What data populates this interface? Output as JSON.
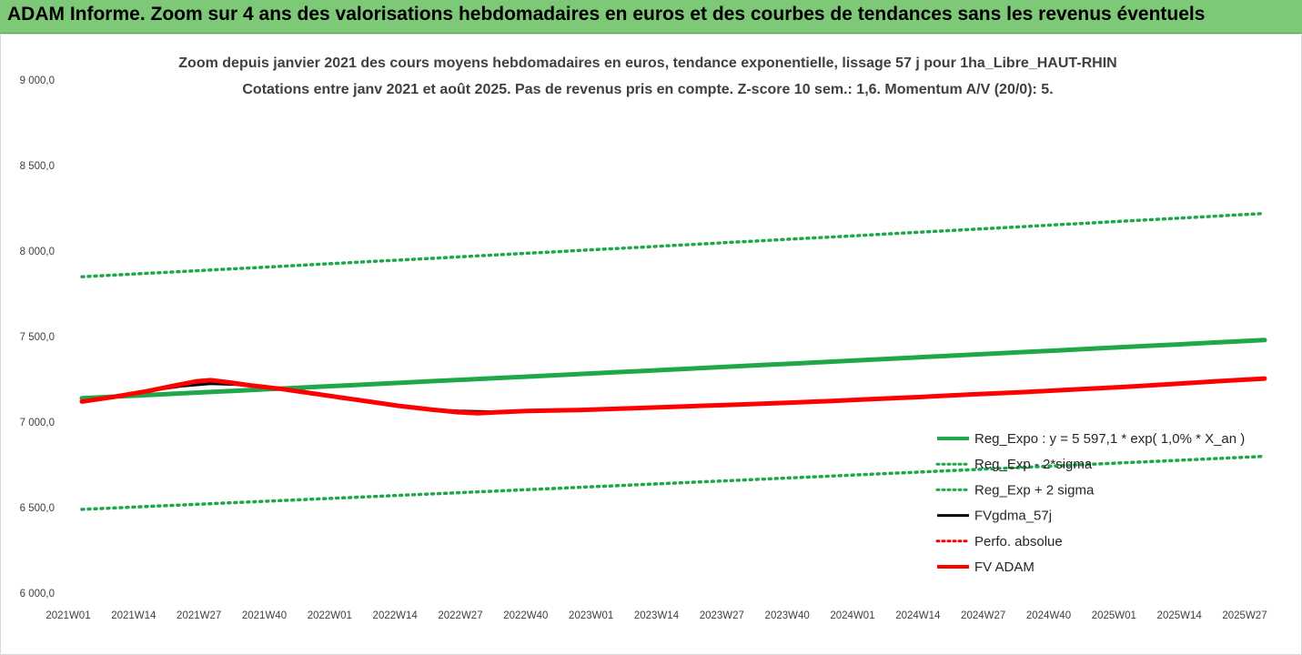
{
  "banner": {
    "title": "ADAM Informe. Zoom sur 4 ans des valorisations hebdomadaires en euros et des courbes de tendances sans les revenus éventuels",
    "background": "#7dc977"
  },
  "chart_data": {
    "type": "line",
    "title": "Zoom depuis janvier 2021 des cours moyens hebdomadaires en euros, tendance exponentielle, lissage 57 j pour 1ha_Libre_HAUT-RHIN",
    "subtitle": "Cotations entre janv 2021 et août 2025.  Pas de revenus pris en compte. Z-score 10 sem.: 1,6. Momentum A/V (20/0): 5.",
    "ylim": [
      6000,
      9000
    ],
    "yticks": [
      "9 000,0",
      "8 500,0",
      "8 000,0",
      "7 500,0",
      "7 000,0",
      "6 500,0",
      "6 000,0"
    ],
    "ytick_values": [
      9000,
      8500,
      8000,
      7500,
      7000,
      6500,
      6000
    ],
    "xticks": [
      "2021W01",
      "2021W14",
      "2021W27",
      "2021W40",
      "2022W01",
      "2022W14",
      "2022W27",
      "2022W40",
      "2023W01",
      "2023W14",
      "2023W27",
      "2023W40",
      "2024W01",
      "2024W14",
      "2024W27",
      "2024W40",
      "2025W01",
      "2025W14",
      "2025W27"
    ],
    "x_range_weeks": [
      0,
      239
    ],
    "grid": false,
    "legend_position": "right",
    "series": [
      {
        "name": "Reg_Expo : y = 5 597,1 * exp( 1,0% *  X_an )",
        "style": "solid",
        "color": "#1fa84a",
        "width": 5,
        "points": [
          [
            0,
            7140
          ],
          [
            239,
            7480
          ]
        ]
      },
      {
        "name": "Reg_Exp - 2*sigma",
        "style": "dotted",
        "color": "#1fa84a",
        "width": 3.5,
        "points": [
          [
            0,
            6490
          ],
          [
            239,
            6800
          ]
        ]
      },
      {
        "name": "Reg_Exp + 2 sigma",
        "style": "dotted",
        "color": "#1fa84a",
        "width": 3.5,
        "points": [
          [
            0,
            7850
          ],
          [
            239,
            8220
          ]
        ]
      },
      {
        "name": "FVgdma_57j",
        "style": "solid",
        "color": "#000000",
        "width": 3,
        "points": [
          [
            0,
            7120
          ],
          [
            6,
            7150
          ],
          [
            13,
            7180
          ],
          [
            20,
            7210
          ],
          [
            26,
            7225
          ],
          [
            31,
            7220
          ],
          [
            38,
            7200
          ],
          [
            45,
            7180
          ],
          [
            52,
            7140
          ],
          [
            60,
            7110
          ],
          [
            68,
            7080
          ],
          [
            76,
            7065
          ],
          [
            84,
            7060
          ],
          [
            92,
            7065
          ]
        ]
      },
      {
        "name": "Perfo. absolue",
        "style": "dotted",
        "color": "#ff0000",
        "width": 3,
        "points": []
      },
      {
        "name": "FV ADAM",
        "style": "solid",
        "color": "#ff0000",
        "width": 5,
        "points": [
          [
            0,
            7120
          ],
          [
            6,
            7145
          ],
          [
            13,
            7180
          ],
          [
            19,
            7215
          ],
          [
            23,
            7238
          ],
          [
            26,
            7245
          ],
          [
            29,
            7235
          ],
          [
            34,
            7215
          ],
          [
            40,
            7195
          ],
          [
            46,
            7170
          ],
          [
            52,
            7145
          ],
          [
            58,
            7120
          ],
          [
            64,
            7095
          ],
          [
            70,
            7075
          ],
          [
            76,
            7058
          ],
          [
            80,
            7052
          ],
          [
            84,
            7058
          ],
          [
            90,
            7065
          ],
          [
            100,
            7070
          ],
          [
            110,
            7080
          ],
          [
            120,
            7090
          ],
          [
            130,
            7100
          ],
          [
            140,
            7110
          ],
          [
            150,
            7122
          ],
          [
            160,
            7135
          ],
          [
            170,
            7148
          ],
          [
            180,
            7162
          ],
          [
            190,
            7175
          ],
          [
            200,
            7190
          ],
          [
            210,
            7205
          ],
          [
            220,
            7222
          ],
          [
            230,
            7240
          ],
          [
            239,
            7255
          ]
        ]
      }
    ]
  }
}
